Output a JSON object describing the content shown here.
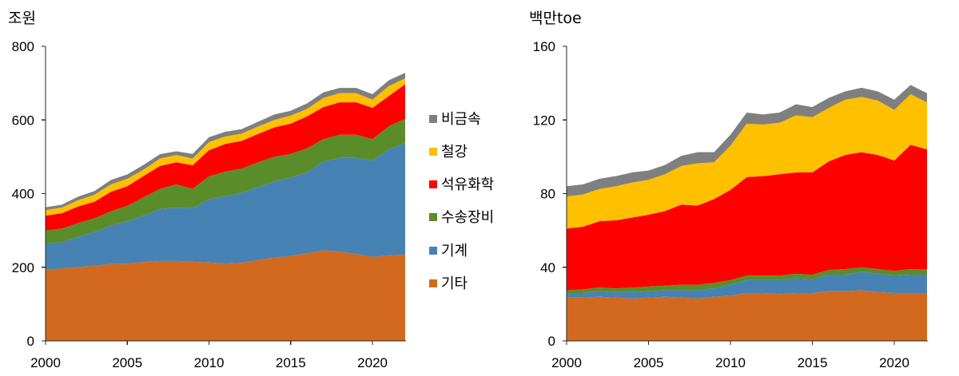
{
  "chart_data": [
    {
      "type": "area",
      "stacked": true,
      "ylabel": "조원",
      "ylim": [
        0,
        800
      ],
      "yticks": [
        0,
        200,
        400,
        600,
        800
      ],
      "xticks": [
        2000,
        2005,
        2010,
        2015,
        2020
      ],
      "grid": false,
      "legend_placement": "right",
      "x": [
        2000,
        2001,
        2002,
        2003,
        2004,
        2005,
        2006,
        2007,
        2008,
        2009,
        2010,
        2011,
        2012,
        2013,
        2014,
        2015,
        2016,
        2017,
        2018,
        2019,
        2020,
        2021,
        2022
      ],
      "series": [
        {
          "name": "비금속",
          "color": "#7F7F7F",
          "values": [
            8,
            8,
            10,
            10,
            12,
            12,
            13,
            12,
            10,
            13,
            13,
            13,
            12,
            13,
            15,
            13,
            15,
            15,
            14,
            14,
            15,
            16,
            15
          ]
        },
        {
          "name": "철강",
          "color": "#FFC000",
          "values": [
            15,
            15,
            17,
            19,
            20,
            20,
            17,
            20,
            20,
            18,
            22,
            20,
            20,
            20,
            20,
            22,
            20,
            25,
            25,
            25,
            22,
            27,
            16
          ]
        },
        {
          "name": "석유화학",
          "color": "#FF0000",
          "values": [
            40,
            42,
            45,
            45,
            53,
            53,
            58,
            62,
            60,
            64,
            71,
            75,
            75,
            77,
            80,
            82,
            87,
            87,
            88,
            88,
            85,
            82,
            94
          ]
        },
        {
          "name": "수송장비",
          "color": "#5B8C2A",
          "values": [
            36,
            37,
            38,
            37,
            39,
            42,
            50,
            55,
            63,
            53,
            62,
            67,
            66,
            67,
            67,
            65,
            65,
            61,
            63,
            63,
            58,
            63,
            66
          ]
        },
        {
          "name": "기계",
          "color": "#4682B4",
          "values": [
            71,
            71,
            82,
            92,
            104,
            115,
            126,
            141,
            145,
            145,
            172,
            183,
            190,
            198,
            207,
            212,
            220,
            241,
            255,
            261,
            262,
            288,
            302
          ]
        },
        {
          "name": "기타",
          "color": "#D2691E",
          "values": [
            193,
            197,
            200,
            204,
            209,
            210,
            214,
            217,
            217,
            215,
            213,
            210,
            212,
            220,
            226,
            231,
            238,
            246,
            242,
            236,
            228,
            232,
            235
          ]
        }
      ]
    },
    {
      "type": "area",
      "stacked": true,
      "ylabel": "백만toe",
      "ylim": [
        0,
        160
      ],
      "yticks": [
        0,
        40,
        80,
        120,
        160
      ],
      "xticks": [
        2000,
        2005,
        2010,
        2015,
        2020
      ],
      "grid": false,
      "x": [
        2000,
        2001,
        2002,
        2003,
        2004,
        2005,
        2006,
        2007,
        2008,
        2009,
        2010,
        2011,
        2012,
        2013,
        2014,
        2015,
        2016,
        2017,
        2018,
        2019,
        2020,
        2021,
        2022
      ],
      "series": [
        {
          "name": "비금속",
          "color": "#7F7F7F",
          "values": [
            5.5,
            5.5,
            5.5,
            5.5,
            5.5,
            5,
            5,
            5.5,
            6,
            5.5,
            6,
            6,
            5.5,
            5.5,
            6,
            5.5,
            5.5,
            4.5,
            5,
            5,
            5.5,
            5,
            5
          ]
        },
        {
          "name": "철강",
          "color": "#FFC000",
          "values": [
            17.5,
            17.5,
            17.5,
            18.5,
            19,
            19,
            20,
            21,
            23,
            20,
            24,
            29,
            28,
            28,
            31,
            30,
            29,
            30,
            30,
            29.5,
            27.5,
            27.5,
            25.5
          ]
        },
        {
          "name": "석유화학",
          "color": "#FF0000",
          "values": [
            33.5,
            34,
            36,
            37,
            38,
            39,
            40.5,
            43.5,
            43,
            45.5,
            49,
            53.5,
            54,
            55,
            55,
            55.5,
            59,
            62,
            62.5,
            62,
            60,
            67.5,
            65
          ]
        },
        {
          "name": "수송장비",
          "color": "#5B8C2A",
          "values": [
            1.5,
            2,
            2,
            2,
            2.5,
            2.5,
            2.5,
            3,
            3,
            3,
            2.5,
            2.5,
            2.5,
            2.5,
            2.5,
            2.5,
            2.5,
            3,
            2.5,
            2.5,
            2.5,
            3,
            3
          ]
        },
        {
          "name": "기계",
          "color": "#4682B4",
          "values": [
            2.5,
            2.5,
            3,
            3,
            3.5,
            3.5,
            3.5,
            4,
            4.5,
            4.5,
            6,
            7,
            7,
            7.5,
            8,
            7.5,
            9,
            9,
            10,
            10,
            9.5,
            10,
            10
          ]
        },
        {
          "name": "기타",
          "color": "#D2691E",
          "values": [
            23.5,
            23.5,
            24,
            23.5,
            23,
            23.5,
            24,
            23.5,
            23,
            24,
            24.5,
            26,
            26,
            25.5,
            26,
            26,
            27,
            27,
            27.5,
            26.5,
            26,
            26,
            26
          ]
        }
      ]
    }
  ]
}
